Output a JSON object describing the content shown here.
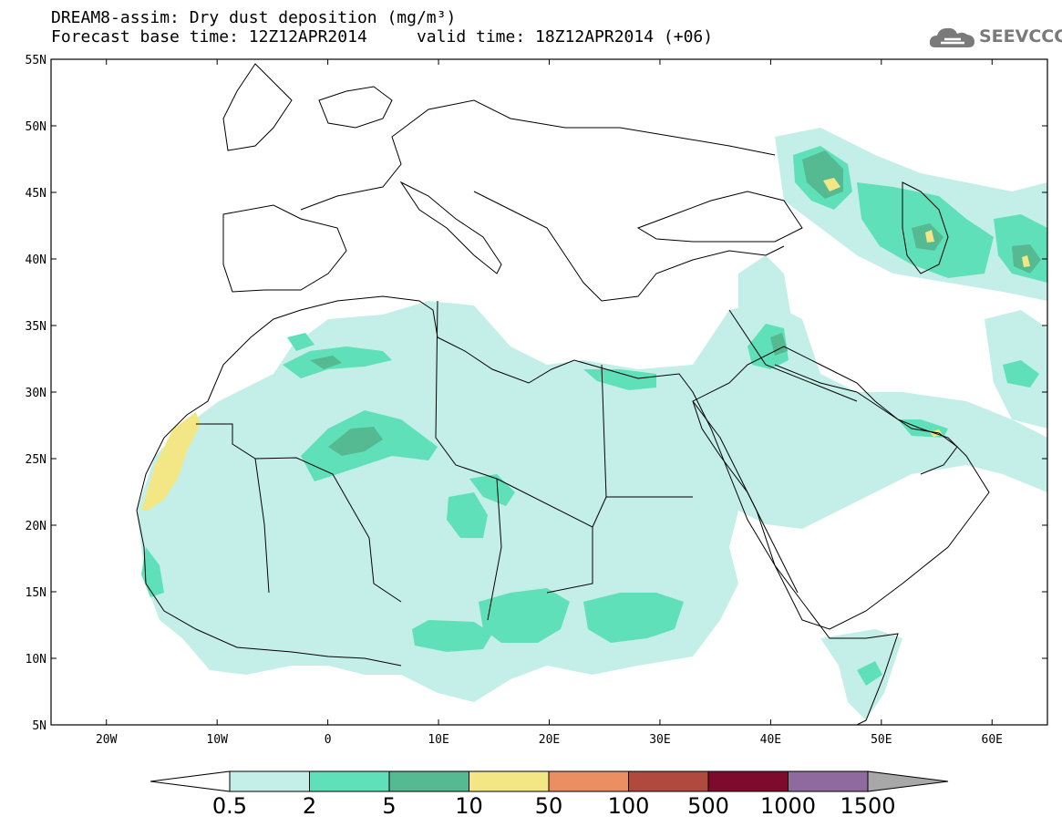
{
  "title": {
    "line1": "DREAM8-assim: Dry dust deposition (mg/m³)",
    "line2": "Forecast base time: 12Z12APR2014     valid time: 18Z12APR2014 (+06)"
  },
  "logo": {
    "text": "SEEVCCC",
    "icon": "cloud-icon"
  },
  "map": {
    "lon_range": [
      -25,
      65
    ],
    "lat_range": [
      5,
      55
    ],
    "lat_ticks": [
      {
        "value": 55,
        "label": "55N"
      },
      {
        "value": 50,
        "label": "50N"
      },
      {
        "value": 45,
        "label": "45N"
      },
      {
        "value": 40,
        "label": "40N"
      },
      {
        "value": 35,
        "label": "35N"
      },
      {
        "value": 30,
        "label": "30N"
      },
      {
        "value": 25,
        "label": "25N"
      },
      {
        "value": 20,
        "label": "20N"
      },
      {
        "value": 15,
        "label": "15N"
      },
      {
        "value": 10,
        "label": "10N"
      },
      {
        "value": 5,
        "label": "5N"
      }
    ],
    "lon_ticks": [
      {
        "value": -20,
        "label": "20W"
      },
      {
        "value": -10,
        "label": "10W"
      },
      {
        "value": 0,
        "label": "0"
      },
      {
        "value": 10,
        "label": "10E"
      },
      {
        "value": 20,
        "label": "20E"
      },
      {
        "value": 30,
        "label": "30E"
      },
      {
        "value": 40,
        "label": "40E"
      },
      {
        "value": 50,
        "label": "50E"
      },
      {
        "value": 60,
        "label": "60E"
      }
    ]
  },
  "colorbar": {
    "levels": [
      "0.5",
      "2",
      "5",
      "10",
      "50",
      "100",
      "500",
      "1000",
      "1500"
    ],
    "colors": [
      "#c4efe9",
      "#5fe0b8",
      "#55b991",
      "#f3e785",
      "#eb8f63",
      "#b04a3e",
      "#7e0b2d",
      "#8f6a9e"
    ],
    "under_color": "#ffffff",
    "over_color": "#a8a8a8"
  },
  "fields": {
    "level_colors": {
      "l1": "#c4efe9",
      "l2": "#5fe0b8",
      "l3": "#55b991",
      "l4": "#f3e785"
    }
  }
}
